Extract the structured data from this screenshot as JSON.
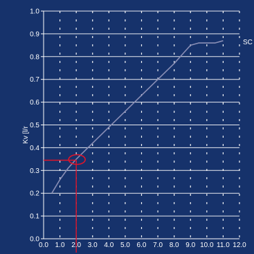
{
  "chart_data": {
    "type": "line",
    "title": "",
    "xlabel": "",
    "ylabel": "Kv [l/r",
    "xlim": [
      0,
      12
    ],
    "ylim": [
      0,
      1.0
    ],
    "x_ticks": [
      "0.0",
      "1.0",
      "2.0",
      "3.0",
      "4.0",
      "5.0",
      "6.0",
      "7.0",
      "8.0",
      "9.0",
      "10.0",
      "11.0",
      "12.0"
    ],
    "y_ticks": [
      "0.0",
      "0.1",
      "0.2",
      "0.3",
      "0.4",
      "0.5",
      "0.6",
      "0.7",
      "0.8",
      "0.9",
      "1.0"
    ],
    "grid": "dashed vertical and horizontal",
    "series": [
      {
        "label": "SC",
        "points": [
          [
            0.5,
            0.2
          ],
          [
            1.0,
            0.26
          ],
          [
            1.5,
            0.31
          ],
          [
            2.0,
            0.35
          ],
          [
            3.0,
            0.42
          ],
          [
            4.0,
            0.49
          ],
          [
            5.0,
            0.56
          ],
          [
            6.0,
            0.63
          ],
          [
            7.0,
            0.7
          ],
          [
            8.0,
            0.77
          ],
          [
            8.5,
            0.81
          ],
          [
            9.0,
            0.85
          ],
          [
            9.5,
            0.86
          ],
          [
            10.0,
            0.86
          ],
          [
            10.5,
            0.86
          ],
          [
            11.0,
            0.87
          ]
        ]
      }
    ],
    "highlight": {
      "x": 2.0,
      "y": 0.345
    },
    "colors": {
      "background": "#16326b",
      "grid": "#ffffff",
      "curve": "#8a8fb6",
      "marker": "#e0142a",
      "text": "#ffffff"
    }
  }
}
